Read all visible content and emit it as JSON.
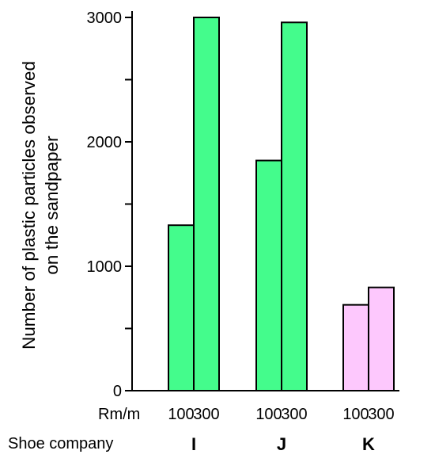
{
  "chart_data": {
    "type": "bar",
    "ylabel": [
      "Number of plastic particles observed",
      "on the sandpaper"
    ],
    "row_labels": {
      "sub": "Rm/m",
      "group": "Shoe company"
    },
    "groups": [
      "I",
      "J",
      "K"
    ],
    "sublabels": [
      "100",
      "300"
    ],
    "yticks": [
      "0",
      "1000",
      "2000",
      "3000"
    ],
    "ylim": [
      0,
      3000
    ],
    "values": [
      [
        1330,
        3000
      ],
      [
        1850,
        2960
      ],
      [
        690,
        830
      ]
    ],
    "colors": [
      "#44fc8c",
      "#44fc8c",
      "#fdc8fd"
    ],
    "edge_color": "#000000",
    "grid": false
  }
}
